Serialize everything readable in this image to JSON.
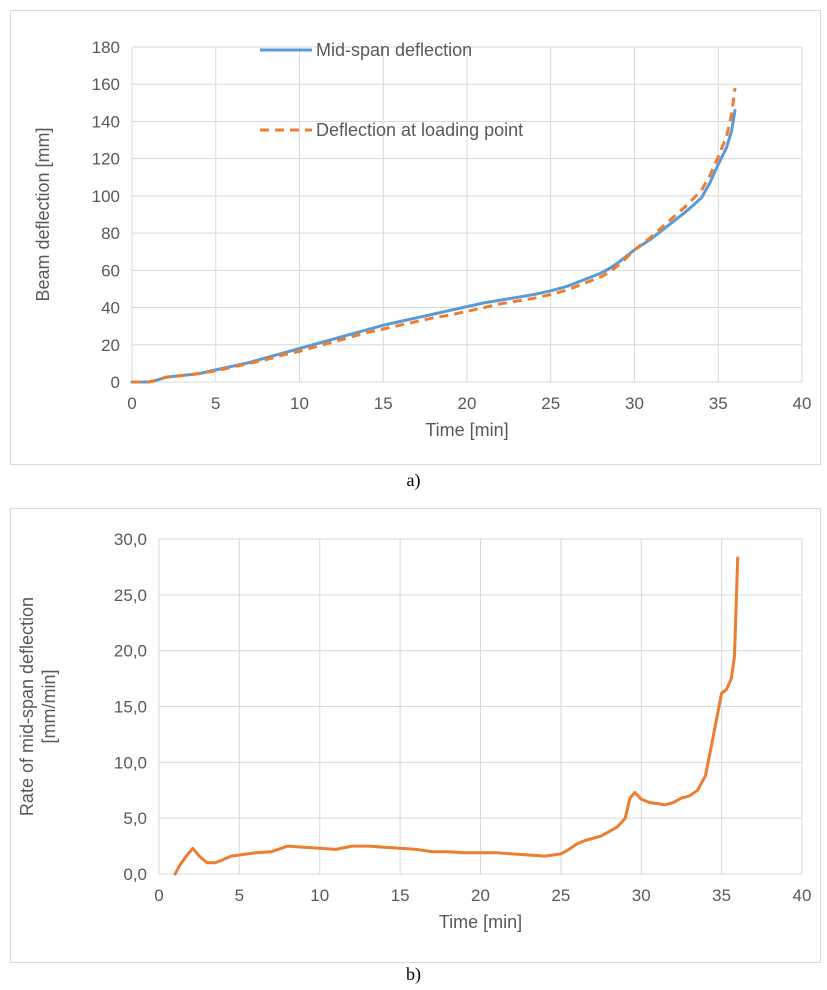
{
  "colors": {
    "mid_span": "#5b9bd5",
    "loading_point": "#ed7d31",
    "rate": "#ed7d31",
    "grid": "#d9d9d9",
    "text": "#595959"
  },
  "captions": {
    "a": "a)",
    "b": "b)"
  },
  "chart_data": [
    {
      "type": "line",
      "xlabel": "Time [min]",
      "ylabel": "Beam deflection [mm]",
      "xlim": [
        0,
        40
      ],
      "ylim": [
        0,
        180
      ],
      "xticks": [
        "0",
        "5",
        "10",
        "15",
        "20",
        "25",
        "30",
        "35",
        "40"
      ],
      "yticks": [
        "0",
        "20",
        "40",
        "60",
        "80",
        "100",
        "120",
        "140",
        "160",
        "180"
      ],
      "grid": true,
      "legend_position": "top-center",
      "series": [
        {
          "name": "Mid-span deflection",
          "style": "solid",
          "color": "#5b9bd5",
          "x": [
            0,
            1,
            1.5,
            2,
            3,
            4,
            5,
            6,
            7,
            8,
            9,
            10,
            11,
            12,
            13,
            14,
            15,
            16,
            17,
            18,
            19,
            20,
            21,
            22,
            23,
            24,
            25,
            26,
            27,
            28,
            28.5,
            29,
            29.5,
            30,
            31,
            32,
            33,
            34,
            34.5,
            35,
            35.5,
            35.8,
            36
          ],
          "y": [
            0,
            0,
            1,
            2.5,
            3.5,
            4.5,
            6.5,
            8.5,
            10.5,
            13,
            15.5,
            18,
            20.5,
            23,
            25.5,
            28,
            30.5,
            32.5,
            34.5,
            36.5,
            38.5,
            40.5,
            42.5,
            44,
            45.5,
            47,
            49,
            51.5,
            55,
            58.5,
            61,
            64,
            67.5,
            71,
            77,
            84,
            91,
            99,
            107,
            117,
            126,
            135,
            146
          ]
        },
        {
          "name": "Deflection at loading point",
          "style": "dashed",
          "color": "#ed7d31",
          "x": [
            0,
            1,
            1.5,
            2,
            3,
            4,
            5,
            6,
            7,
            8,
            9,
            10,
            11,
            12,
            13,
            14,
            15,
            16,
            17,
            18,
            19,
            20,
            21,
            22,
            23,
            24,
            25,
            26,
            27,
            28,
            28.5,
            29,
            29.5,
            30,
            31,
            32,
            33,
            34,
            34.5,
            35,
            35.5,
            35.8,
            36
          ],
          "y": [
            0,
            0,
            1,
            2.5,
            3.5,
            4.5,
            6,
            8,
            10,
            12,
            14.5,
            16.5,
            19,
            21.5,
            24,
            26.5,
            28.5,
            30.5,
            32.5,
            34.5,
            36,
            38,
            40,
            42,
            43.5,
            45,
            47,
            49.5,
            53,
            56.5,
            59,
            62.5,
            66.5,
            71,
            78,
            86,
            94,
            103,
            111,
            121,
            132,
            144,
            158
          ]
        }
      ]
    },
    {
      "type": "line",
      "xlabel": "Time [min]",
      "ylabel": "Rate of mid-span deflection [mm/min]",
      "ylabel_lines": [
        "Rate of mid-span deflection",
        "[mm/min]"
      ],
      "xlim": [
        0,
        40
      ],
      "ylim": [
        0,
        30
      ],
      "xticks": [
        "0",
        "5",
        "10",
        "15",
        "20",
        "25",
        "30",
        "35",
        "40"
      ],
      "yticks": [
        "0,0",
        "5,0",
        "10,0",
        "15,0",
        "20,0",
        "25,0",
        "30,0"
      ],
      "grid": true,
      "series": [
        {
          "color": "#ed7d31",
          "x": [
            1,
            1.3,
            1.7,
            2.1,
            2.5,
            3,
            3.5,
            4,
            4.5,
            5,
            6,
            7,
            8,
            9,
            10,
            11,
            12,
            13,
            14,
            15,
            16,
            17,
            18,
            19,
            20,
            21,
            22,
            23,
            24,
            25,
            25.5,
            26,
            26.5,
            27,
            27.5,
            28,
            28.5,
            29,
            29.3,
            29.6,
            30,
            30.5,
            31,
            31.5,
            32,
            32.5,
            33,
            33.5,
            34,
            34.5,
            35,
            35.3,
            35.6,
            35.8,
            36
          ],
          "y": [
            0,
            0.8,
            1.6,
            2.3,
            1.6,
            1.0,
            1.0,
            1.3,
            1.6,
            1.7,
            1.9,
            2.0,
            2.5,
            2.4,
            2.3,
            2.2,
            2.5,
            2.5,
            2.4,
            2.3,
            2.2,
            2.0,
            2.0,
            1.9,
            1.9,
            1.9,
            1.8,
            1.7,
            1.6,
            1.8,
            2.2,
            2.7,
            3.0,
            3.2,
            3.4,
            3.8,
            4.2,
            5.0,
            6.8,
            7.3,
            6.7,
            6.4,
            6.3,
            6.2,
            6.4,
            6.8,
            7.0,
            7.5,
            8.8,
            12.5,
            16.2,
            16.5,
            17.5,
            19.5,
            28.3
          ]
        }
      ]
    }
  ]
}
